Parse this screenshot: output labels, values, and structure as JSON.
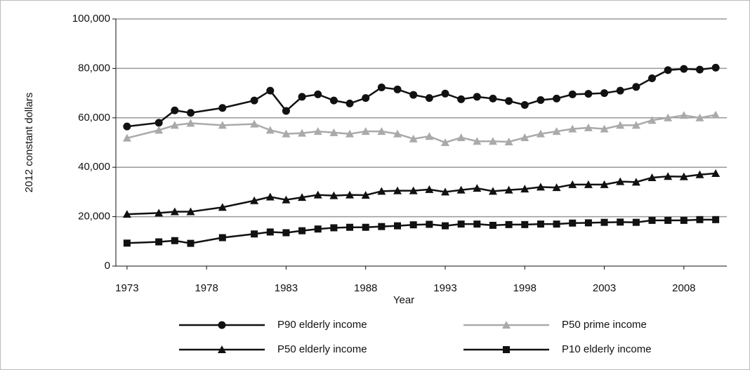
{
  "chart_data": {
    "type": "line",
    "x_label": "Year",
    "y_label": "2012 constant dollars",
    "x": [
      1973,
      1975,
      1976,
      1977,
      1979,
      1981,
      1982,
      1983,
      1984,
      1985,
      1986,
      1987,
      1988,
      1989,
      1990,
      1991,
      1992,
      1993,
      1994,
      1995,
      1996,
      1997,
      1998,
      1999,
      2000,
      2001,
      2002,
      2003,
      2004,
      2005,
      2006,
      2007,
      2008,
      2009,
      2010
    ],
    "xlim": [
      1972.3,
      2010.7
    ],
    "xticks": [
      1973,
      1978,
      1983,
      1988,
      1993,
      1998,
      2003,
      2008
    ],
    "ylim": [
      0,
      100000
    ],
    "yticks": [
      0,
      {
        "value": 20000,
        "label": "20,000"
      },
      {
        "value": 40000,
        "label": "40,000"
      },
      {
        "value": 60000,
        "label": "60,000"
      },
      {
        "value": 80000,
        "label": "80,000"
      },
      {
        "value": 100000,
        "label": "100,000"
      }
    ],
    "grid": true,
    "series": [
      {
        "name": "P90 elderly income",
        "color": "#111111",
        "marker": "circle",
        "values": [
          56500,
          58000,
          63000,
          62000,
          64000,
          67000,
          71000,
          62800,
          68500,
          69500,
          67000,
          65800,
          68000,
          72300,
          71500,
          69300,
          68000,
          69800,
          67500,
          68500,
          67800,
          66800,
          65200,
          67200,
          67800,
          69500,
          69700,
          70000,
          71000,
          72500,
          76000,
          79300,
          79800,
          79500,
          80300
        ]
      },
      {
        "name": "P50 prime income",
        "color": "#aaaaaa",
        "marker": "triangle",
        "values": [
          51800,
          55000,
          57000,
          57800,
          57000,
          57500,
          55000,
          53500,
          53800,
          54500,
          54000,
          53500,
          54500,
          54500,
          53500,
          51500,
          52500,
          50000,
          52000,
          50500,
          50500,
          50300,
          52000,
          53500,
          54500,
          55500,
          56000,
          55500,
          57000,
          57000,
          59000,
          60000,
          61000,
          60000,
          61200
        ]
      },
      {
        "name": "P50 elderly income",
        "color": "#111111",
        "marker": "triangle",
        "values": [
          21000,
          21500,
          22000,
          22000,
          23800,
          26500,
          28000,
          26800,
          27800,
          28800,
          28500,
          28800,
          28700,
          30300,
          30500,
          30500,
          31000,
          30000,
          30800,
          31500,
          30300,
          30800,
          31200,
          32000,
          31800,
          33000,
          33000,
          33000,
          34200,
          34000,
          35800,
          36300,
          36200,
          37000,
          37500
        ]
      },
      {
        "name": "P10 elderly income",
        "color": "#111111",
        "marker": "square",
        "values": [
          9300,
          9800,
          10300,
          9200,
          11500,
          13000,
          13800,
          13500,
          14300,
          15000,
          15500,
          15700,
          15700,
          16000,
          16300,
          16700,
          16900,
          16300,
          17000,
          17000,
          16500,
          16800,
          16800,
          17000,
          17000,
          17400,
          17500,
          17700,
          17800,
          17700,
          18500,
          18500,
          18500,
          18800,
          18800
        ]
      }
    ]
  }
}
